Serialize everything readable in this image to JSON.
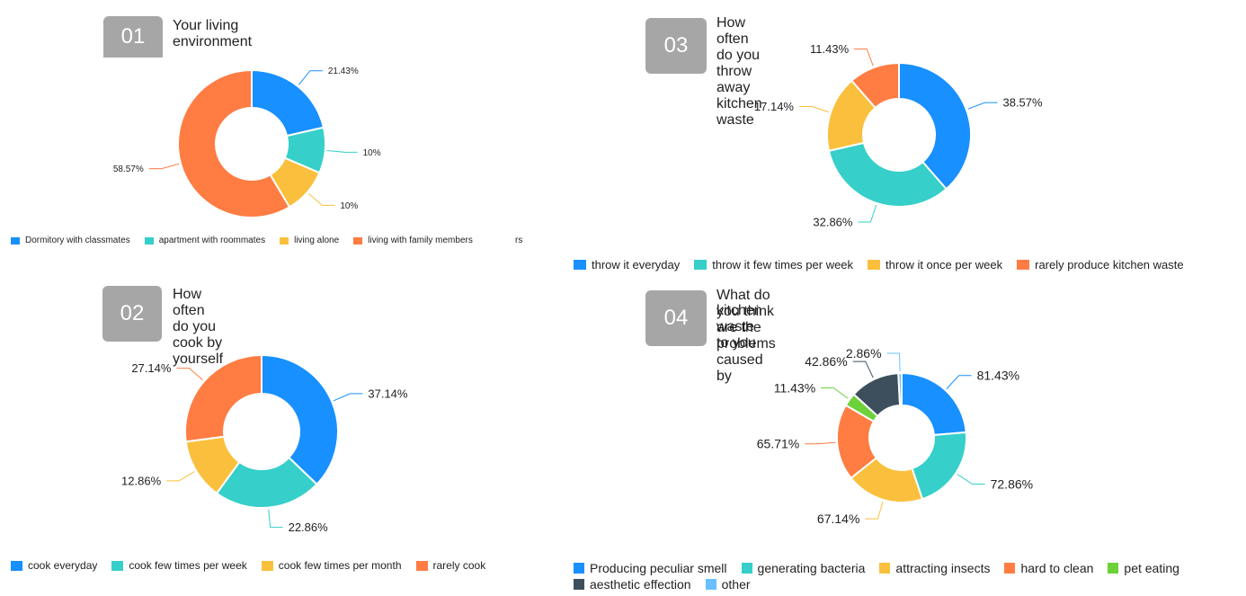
{
  "panels": [
    {
      "badge": "01",
      "title": "Your living environment",
      "legend_extra": "rs"
    },
    {
      "badge": "03",
      "title": "How often do you throw away kitchen waste"
    },
    {
      "badge": "02",
      "title": "How often do you cook by yourself"
    },
    {
      "badge": "04",
      "title_line1": "What do you think are the problems caused by",
      "title_line2": "kitchen waste to you"
    }
  ],
  "chart_data": [
    {
      "type": "pie",
      "title": "Your living environment",
      "categories": [
        "Dormitory with classmates",
        "apartment with roommates",
        "living alone",
        "living with family members"
      ],
      "values": [
        21.43,
        10,
        10,
        58.57
      ],
      "labels": [
        "21.43%",
        "10%",
        "10%",
        "58.57%"
      ],
      "colors": [
        "#1890ff",
        "#36cfc9",
        "#fac03d",
        "#ff7c43"
      ],
      "legend": "bottom"
    },
    {
      "type": "pie",
      "title": "How often do you throw away kitchen waste",
      "categories": [
        "throw it everyday",
        "throw it few times per week",
        "throw it once per week",
        "rarely produce kitchen waste"
      ],
      "values": [
        38.57,
        32.86,
        17.14,
        11.43
      ],
      "labels": [
        "38.57%",
        "32.86%",
        "17.14%",
        "11.43%"
      ],
      "colors": [
        "#1890ff",
        "#36cfc9",
        "#fac03d",
        "#ff7c43"
      ],
      "legend": "bottom"
    },
    {
      "type": "pie",
      "title": "How often do you cook by yourself",
      "categories": [
        "cook everyday",
        "cook few times per week",
        "cook few times per month",
        "rarely cook"
      ],
      "values": [
        37.14,
        22.86,
        12.86,
        27.14
      ],
      "labels": [
        "37.14%",
        "22.86%",
        "12.86%",
        "27.14%"
      ],
      "colors": [
        "#1890ff",
        "#36cfc9",
        "#fac03d",
        "#ff7c43"
      ],
      "legend": "bottom"
    },
    {
      "type": "pie",
      "title": "What do you think are the problems caused by kitchen waste to you",
      "categories": [
        "Producing peculiar smell",
        "generating bacteria",
        "attracting insects",
        "hard to clean",
        "pet eating",
        "aesthetic effection",
        "other"
      ],
      "values": [
        81.43,
        72.86,
        67.14,
        65.71,
        11.43,
        42.86,
        2.86
      ],
      "labels": [
        "81.43%",
        "72.86%",
        "67.14%",
        "65.71%",
        "11.43%",
        "42.86%",
        "2.86%"
      ],
      "colors": [
        "#1890ff",
        "#36cfc9",
        "#fac03d",
        "#ff7c43",
        "#6dd13a",
        "#3d4f5c",
        "#69c0ff"
      ],
      "legend": "bottom"
    }
  ]
}
